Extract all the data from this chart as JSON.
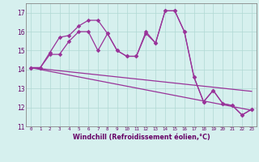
{
  "title": "",
  "xlabel": "Windchill (Refroidissement éolien,°C)",
  "ylabel": "",
  "background_color": "#d6f0ee",
  "line_color": "#993399",
  "grid_color": "#b0d8d4",
  "axis_color": "#660066",
  "text_color": "#660066",
  "xlim": [
    -0.5,
    23.5
  ],
  "ylim": [
    11,
    17.5
  ],
  "yticks": [
    11,
    12,
    13,
    14,
    15,
    16,
    17
  ],
  "xticks": [
    0,
    1,
    2,
    3,
    4,
    5,
    6,
    7,
    8,
    9,
    10,
    11,
    12,
    13,
    14,
    15,
    16,
    17,
    18,
    19,
    20,
    21,
    22,
    23
  ],
  "line1_x": [
    0,
    1,
    2,
    3,
    4,
    5,
    6,
    7,
    8,
    9,
    10,
    11,
    12,
    13,
    14,
    15,
    16,
    17,
    18,
    19,
    20,
    21,
    22,
    23
  ],
  "line1_y": [
    14.1,
    14.1,
    14.9,
    15.7,
    15.8,
    16.3,
    16.6,
    16.6,
    15.9,
    15.0,
    14.7,
    14.7,
    15.9,
    15.4,
    17.1,
    17.1,
    16.0,
    13.6,
    12.3,
    12.9,
    12.2,
    12.1,
    11.6,
    11.9
  ],
  "line2_x": [
    0,
    1,
    2,
    3,
    4,
    5,
    6,
    7,
    8,
    9,
    10,
    11,
    12,
    13,
    14,
    15,
    16,
    17,
    18,
    19,
    20,
    21,
    22,
    23
  ],
  "line2_y": [
    14.1,
    14.1,
    14.8,
    14.8,
    15.5,
    16.0,
    16.0,
    15.0,
    15.9,
    15.0,
    14.7,
    14.7,
    16.0,
    15.4,
    17.1,
    17.1,
    16.0,
    13.6,
    12.3,
    12.9,
    12.2,
    12.1,
    11.6,
    11.9
  ],
  "line3_x": [
    0,
    23
  ],
  "line3_y": [
    14.1,
    12.85
  ],
  "line4_x": [
    0,
    23
  ],
  "line4_y": [
    14.1,
    11.85
  ]
}
